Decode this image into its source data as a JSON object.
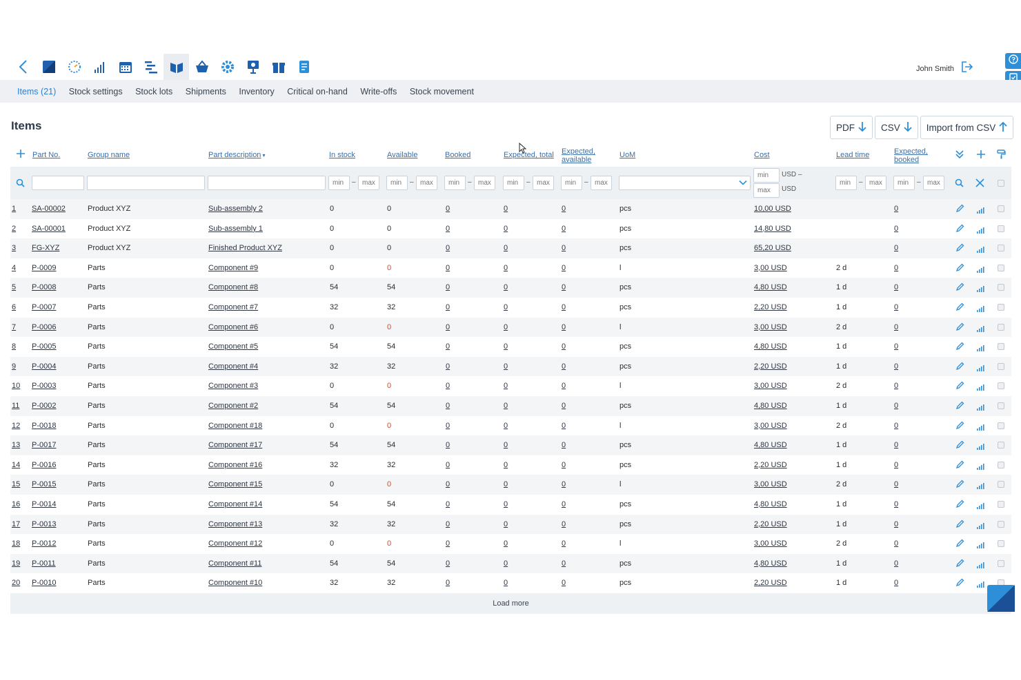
{
  "user": {
    "name": "John Smith"
  },
  "subnav": [
    {
      "label": "Items (21)",
      "active": true
    },
    {
      "label": "Stock settings"
    },
    {
      "label": "Stock lots"
    },
    {
      "label": "Shipments"
    },
    {
      "label": "Inventory"
    },
    {
      "label": "Critical on-hand"
    },
    {
      "label": "Write-offs"
    },
    {
      "label": "Stock movement"
    }
  ],
  "page": {
    "title": "Items",
    "pdf_label": "PDF",
    "csv_label": "CSV",
    "import_label": "Import from CSV",
    "load_more": "Load more"
  },
  "columns": {
    "part_no": "Part No.",
    "group": "Group name",
    "desc": "Part description",
    "in_stock": "In stock",
    "available": "Available",
    "booked": "Booked",
    "exp_total": "Expected, total",
    "exp_avail_1": "Expected,",
    "exp_avail_2": "available",
    "uom": "UoM",
    "cost": "Cost",
    "lead": "Lead time",
    "exp_booked_1": "Expected,",
    "exp_booked_2": "booked"
  },
  "filters": {
    "min": "min",
    "max": "max",
    "dash": "–",
    "usd_top": "USD –",
    "usd_bottom": "USD"
  },
  "rows": [
    {
      "n": "1",
      "part": "SA-00002",
      "group": "Product XYZ",
      "desc": "Sub-assembly 2",
      "stock": "0",
      "avail": "0",
      "booked": "0",
      "exp_total": "0",
      "exp_avail": "0",
      "uom": "pcs",
      "cost": "10,00 USD",
      "lead": "",
      "exp_booked": "0",
      "avail_red": false
    },
    {
      "n": "2",
      "part": "SA-00001",
      "group": "Product XYZ",
      "desc": "Sub-assembly 1",
      "stock": "0",
      "avail": "0",
      "booked": "0",
      "exp_total": "0",
      "exp_avail": "0",
      "uom": "pcs",
      "cost": "14,80 USD",
      "lead": "",
      "exp_booked": "0",
      "avail_red": false
    },
    {
      "n": "3",
      "part": "FG-XYZ",
      "group": "Product XYZ",
      "desc": "Finished Product XYZ",
      "stock": "0",
      "avail": "0",
      "booked": "0",
      "exp_total": "0",
      "exp_avail": "0",
      "uom": "pcs",
      "cost": "65,20 USD",
      "lead": "",
      "exp_booked": "0",
      "avail_red": false
    },
    {
      "n": "4",
      "part": "P-0009",
      "group": "Parts",
      "desc": "Component #9",
      "stock": "0",
      "avail": "0",
      "booked": "0",
      "exp_total": "0",
      "exp_avail": "0",
      "uom": "l",
      "cost": "3,00 USD",
      "lead": "2 d",
      "exp_booked": "0",
      "avail_red": true
    },
    {
      "n": "5",
      "part": "P-0008",
      "group": "Parts",
      "desc": "Component #8",
      "stock": "54",
      "avail": "54",
      "booked": "0",
      "exp_total": "0",
      "exp_avail": "0",
      "uom": "pcs",
      "cost": "4,80 USD",
      "lead": "1 d",
      "exp_booked": "0",
      "avail_red": false
    },
    {
      "n": "6",
      "part": "P-0007",
      "group": "Parts",
      "desc": "Component #7",
      "stock": "32",
      "avail": "32",
      "booked": "0",
      "exp_total": "0",
      "exp_avail": "0",
      "uom": "pcs",
      "cost": "2,20 USD",
      "lead": "1 d",
      "exp_booked": "0",
      "avail_red": false
    },
    {
      "n": "7",
      "part": "P-0006",
      "group": "Parts",
      "desc": "Component #6",
      "stock": "0",
      "avail": "0",
      "booked": "0",
      "exp_total": "0",
      "exp_avail": "0",
      "uom": "l",
      "cost": "3,00 USD",
      "lead": "2 d",
      "exp_booked": "0",
      "avail_red": true
    },
    {
      "n": "8",
      "part": "P-0005",
      "group": "Parts",
      "desc": "Component #5",
      "stock": "54",
      "avail": "54",
      "booked": "0",
      "exp_total": "0",
      "exp_avail": "0",
      "uom": "pcs",
      "cost": "4,80 USD",
      "lead": "1 d",
      "exp_booked": "0",
      "avail_red": false
    },
    {
      "n": "9",
      "part": "P-0004",
      "group": "Parts",
      "desc": "Component #4",
      "stock": "32",
      "avail": "32",
      "booked": "0",
      "exp_total": "0",
      "exp_avail": "0",
      "uom": "pcs",
      "cost": "2,20 USD",
      "lead": "1 d",
      "exp_booked": "0",
      "avail_red": false
    },
    {
      "n": "10",
      "part": "P-0003",
      "group": "Parts",
      "desc": "Component #3",
      "stock": "0",
      "avail": "0",
      "booked": "0",
      "exp_total": "0",
      "exp_avail": "0",
      "uom": "l",
      "cost": "3,00 USD",
      "lead": "2 d",
      "exp_booked": "0",
      "avail_red": true
    },
    {
      "n": "11",
      "part": "P-0002",
      "group": "Parts",
      "desc": "Component #2",
      "stock": "54",
      "avail": "54",
      "booked": "0",
      "exp_total": "0",
      "exp_avail": "0",
      "uom": "pcs",
      "cost": "4,80 USD",
      "lead": "1 d",
      "exp_booked": "0",
      "avail_red": false
    },
    {
      "n": "12",
      "part": "P-0018",
      "group": "Parts",
      "desc": "Component #18",
      "stock": "0",
      "avail": "0",
      "booked": "0",
      "exp_total": "0",
      "exp_avail": "0",
      "uom": "l",
      "cost": "3,00 USD",
      "lead": "2 d",
      "exp_booked": "0",
      "avail_red": true
    },
    {
      "n": "13",
      "part": "P-0017",
      "group": "Parts",
      "desc": "Component #17",
      "stock": "54",
      "avail": "54",
      "booked": "0",
      "exp_total": "0",
      "exp_avail": "0",
      "uom": "pcs",
      "cost": "4,80 USD",
      "lead": "1 d",
      "exp_booked": "0",
      "avail_red": false
    },
    {
      "n": "14",
      "part": "P-0016",
      "group": "Parts",
      "desc": "Component #16",
      "stock": "32",
      "avail": "32",
      "booked": "0",
      "exp_total": "0",
      "exp_avail": "0",
      "uom": "pcs",
      "cost": "2,20 USD",
      "lead": "1 d",
      "exp_booked": "0",
      "avail_red": false
    },
    {
      "n": "15",
      "part": "P-0015",
      "group": "Parts",
      "desc": "Component #15",
      "stock": "0",
      "avail": "0",
      "booked": "0",
      "exp_total": "0",
      "exp_avail": "0",
      "uom": "l",
      "cost": "3,00 USD",
      "lead": "2 d",
      "exp_booked": "0",
      "avail_red": true
    },
    {
      "n": "16",
      "part": "P-0014",
      "group": "Parts",
      "desc": "Component #14",
      "stock": "54",
      "avail": "54",
      "booked": "0",
      "exp_total": "0",
      "exp_avail": "0",
      "uom": "pcs",
      "cost": "4,80 USD",
      "lead": "1 d",
      "exp_booked": "0",
      "avail_red": false
    },
    {
      "n": "17",
      "part": "P-0013",
      "group": "Parts",
      "desc": "Component #13",
      "stock": "32",
      "avail": "32",
      "booked": "0",
      "exp_total": "0",
      "exp_avail": "0",
      "uom": "pcs",
      "cost": "2,20 USD",
      "lead": "1 d",
      "exp_booked": "0",
      "avail_red": false
    },
    {
      "n": "18",
      "part": "P-0012",
      "group": "Parts",
      "desc": "Component #12",
      "stock": "0",
      "avail": "0",
      "booked": "0",
      "exp_total": "0",
      "exp_avail": "0",
      "uom": "l",
      "cost": "3,00 USD",
      "lead": "2 d",
      "exp_booked": "0",
      "avail_red": true
    },
    {
      "n": "19",
      "part": "P-0011",
      "group": "Parts",
      "desc": "Component #11",
      "stock": "54",
      "avail": "54",
      "booked": "0",
      "exp_total": "0",
      "exp_avail": "0",
      "uom": "pcs",
      "cost": "4,80 USD",
      "lead": "1 d",
      "exp_booked": "0",
      "avail_red": false
    },
    {
      "n": "20",
      "part": "P-0010",
      "group": "Parts",
      "desc": "Component #10",
      "stock": "32",
      "avail": "32",
      "booked": "0",
      "exp_total": "0",
      "exp_avail": "0",
      "uom": "pcs",
      "cost": "2,20 USD",
      "lead": "1 d",
      "exp_booked": "0",
      "avail_red": false
    }
  ],
  "colors": {
    "accent": "#2b7fd0",
    "alert": "#d04a2a",
    "link": "#3a6ea8"
  }
}
